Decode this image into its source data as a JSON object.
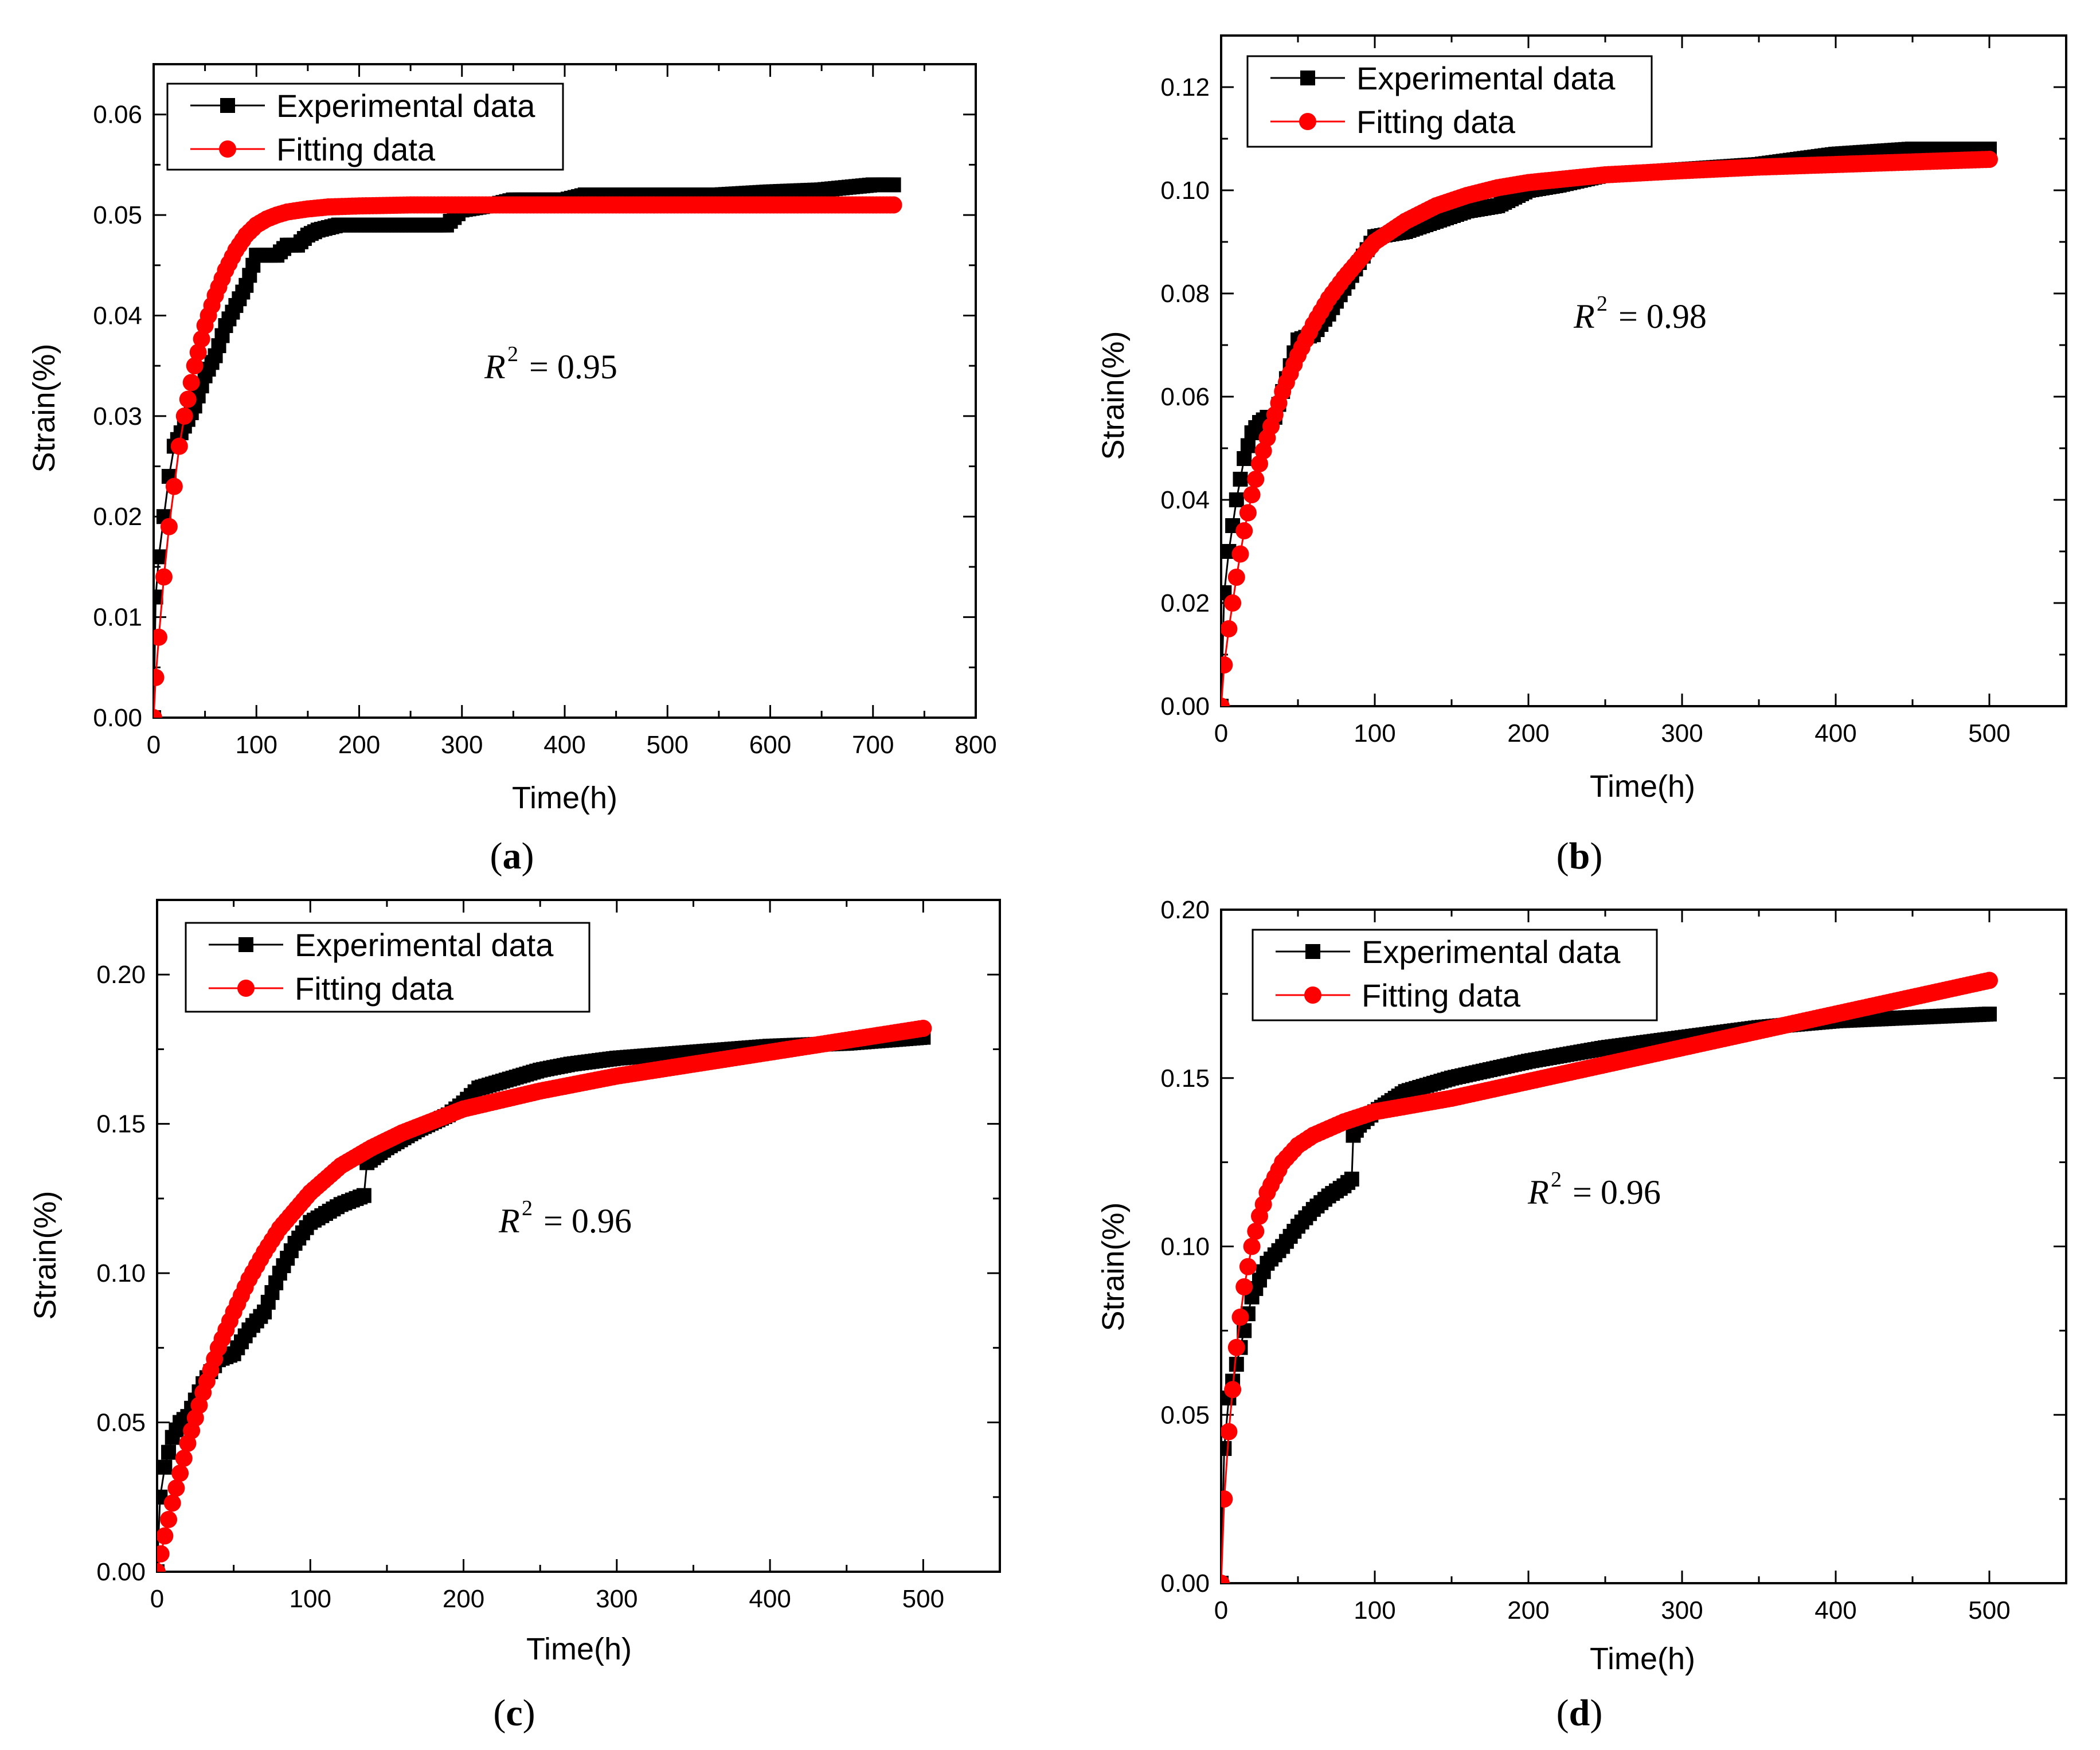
{
  "colors": {
    "experimental": "#000000",
    "fitting": "#ff0000",
    "axis": "#000000",
    "background": "#ffffff"
  },
  "chart_data": [
    {
      "id": "a",
      "type": "scatter",
      "caption_label": "a",
      "xlabel": "Time(h)",
      "ylabel": "Strain(%)",
      "xlim": [
        0,
        800
      ],
      "ylim": [
        0,
        0.065
      ],
      "xticks": [
        0,
        100,
        200,
        300,
        400,
        500,
        600,
        700,
        800
      ],
      "xtick_labels": [
        "0",
        "100",
        "200",
        "300",
        "400",
        "500",
        "600",
        "700",
        "800"
      ],
      "yticks": [
        0,
        0.01,
        0.02,
        0.03,
        0.04,
        0.05,
        0.06
      ],
      "ytick_labels": [
        "0.00",
        "0.01",
        "0.02",
        "0.03",
        "0.04",
        "0.05",
        "0.06"
      ],
      "legend": [
        "Experimental data",
        "Fitting data"
      ],
      "annotation": {
        "r2_symbol": "R",
        "r2_exp": "2",
        "r2_value": "= 0.95"
      },
      "series": [
        {
          "name": "Experimental data",
          "marker": "square",
          "x": [
            0,
            2,
            5,
            10,
            15,
            20,
            30,
            40,
            50,
            60,
            70,
            80,
            90,
            100,
            110,
            120,
            130,
            140,
            150,
            160,
            180,
            200,
            250,
            285,
            300,
            330,
            350,
            400,
            420,
            450,
            500,
            550,
            600,
            650,
            700,
            720
          ],
          "y": [
            0,
            0.012,
            0.016,
            0.02,
            0.024,
            0.027,
            0.029,
            0.031,
            0.034,
            0.036,
            0.039,
            0.041,
            0.043,
            0.046,
            0.046,
            0.046,
            0.047,
            0.047,
            0.048,
            0.0485,
            0.049,
            0.049,
            0.049,
            0.049,
            0.0505,
            0.051,
            0.0515,
            0.0515,
            0.052,
            0.052,
            0.052,
            0.052,
            0.0523,
            0.0525,
            0.053,
            0.053
          ]
        },
        {
          "name": "Fitting data",
          "marker": "circle",
          "x": [
            0,
            2,
            5,
            10,
            15,
            20,
            25,
            30,
            40,
            50,
            60,
            70,
            80,
            90,
            100,
            110,
            120,
            130,
            150,
            170,
            200,
            250,
            300,
            350,
            400,
            450,
            500,
            550,
            600,
            650,
            700,
            720
          ],
          "y": [
            0,
            0.004,
            0.008,
            0.014,
            0.019,
            0.023,
            0.027,
            0.03,
            0.035,
            0.039,
            0.042,
            0.0445,
            0.0465,
            0.048,
            0.049,
            0.0496,
            0.05,
            0.0503,
            0.0506,
            0.0508,
            0.0509,
            0.051,
            0.051,
            0.051,
            0.051,
            0.051,
            0.051,
            0.051,
            0.051,
            0.051,
            0.051,
            0.051
          ]
        }
      ]
    },
    {
      "id": "b",
      "type": "scatter",
      "caption_label": "b",
      "xlabel": "Time(h)",
      "ylabel": "Strain(%)",
      "xlim": [
        0,
        550
      ],
      "ylim": [
        0,
        0.13
      ],
      "xticks": [
        0,
        100,
        200,
        300,
        400,
        500
      ],
      "xtick_labels": [
        "0",
        "100",
        "200",
        "300",
        "400",
        "500"
      ],
      "yticks": [
        0,
        0.02,
        0.04,
        0.06,
        0.08,
        0.1,
        0.12
      ],
      "ytick_labels": [
        "0.00",
        "0.02",
        "0.04",
        "0.06",
        "0.08",
        "0.10",
        "0.12"
      ],
      "legend": [
        "Experimental data",
        "Fitting data"
      ],
      "annotation": {
        "r2_symbol": "R",
        "r2_exp": "2",
        "r2_value": "= 0.98"
      },
      "series": [
        {
          "name": "Experimental data",
          "marker": "square",
          "x": [
            0,
            2,
            5,
            10,
            15,
            20,
            25,
            30,
            35,
            40,
            45,
            50,
            60,
            70,
            80,
            90,
            100,
            120,
            140,
            160,
            180,
            200,
            220,
            250,
            300,
            350,
            400,
            450,
            500
          ],
          "y": [
            0,
            0.022,
            0.03,
            0.04,
            0.048,
            0.053,
            0.055,
            0.056,
            0.056,
            0.061,
            0.066,
            0.071,
            0.072,
            0.076,
            0.081,
            0.086,
            0.091,
            0.092,
            0.094,
            0.096,
            0.097,
            0.1,
            0.101,
            0.103,
            0.104,
            0.105,
            0.107,
            0.108,
            0.108
          ]
        },
        {
          "name": "Fitting data",
          "marker": "circle",
          "x": [
            0,
            2,
            5,
            10,
            15,
            20,
            25,
            30,
            40,
            50,
            60,
            70,
            80,
            100,
            120,
            140,
            160,
            180,
            200,
            250,
            300,
            350,
            400,
            450,
            500
          ],
          "y": [
            0,
            0.008,
            0.015,
            0.025,
            0.034,
            0.041,
            0.047,
            0.052,
            0.061,
            0.068,
            0.074,
            0.079,
            0.083,
            0.09,
            0.094,
            0.097,
            0.099,
            0.1005,
            0.1015,
            0.103,
            0.1038,
            0.1045,
            0.105,
            0.1055,
            0.106
          ]
        }
      ]
    },
    {
      "id": "c",
      "type": "scatter",
      "caption_label": "c",
      "xlabel": "Time(h)",
      "ylabel": "Strain(%)",
      "xlim": [
        0,
        550
      ],
      "ylim": [
        0,
        0.225
      ],
      "xticks": [
        0,
        100,
        200,
        300,
        400,
        500
      ],
      "xtick_labels": [
        "0",
        "100",
        "200",
        "300",
        "400",
        "500"
      ],
      "yticks": [
        0,
        0.05,
        0.1,
        0.15,
        0.2
      ],
      "ytick_labels": [
        "0.00",
        "0.05",
        "0.10",
        "0.15",
        "0.20"
      ],
      "legend": [
        "Experimental data",
        "Fitting data"
      ],
      "annotation": {
        "r2_symbol": "R",
        "r2_exp": "2",
        "r2_value": "= 0.96"
      },
      "series": [
        {
          "name": "Experimental data",
          "marker": "square",
          "x": [
            0,
            2,
            5,
            10,
            15,
            20,
            30,
            40,
            50,
            60,
            70,
            80,
            90,
            100,
            110,
            120,
            130,
            135,
            137,
            150,
            170,
            190,
            200,
            210,
            230,
            250,
            270,
            300,
            350,
            400,
            450,
            500
          ],
          "y": [
            0,
            0.025,
            0.035,
            0.045,
            0.05,
            0.052,
            0.063,
            0.071,
            0.073,
            0.081,
            0.087,
            0.1,
            0.11,
            0.117,
            0.12,
            0.123,
            0.125,
            0.126,
            0.137,
            0.142,
            0.148,
            0.153,
            0.157,
            0.162,
            0.165,
            0.168,
            0.17,
            0.172,
            0.174,
            0.176,
            0.177,
            0.179
          ]
        },
        {
          "name": "Fitting data",
          "marker": "circle",
          "x": [
            0,
            5,
            10,
            20,
            30,
            40,
            50,
            60,
            70,
            80,
            100,
            120,
            140,
            160,
            180,
            200,
            250,
            300,
            350,
            400,
            450,
            500
          ],
          "y": [
            0,
            0.012,
            0.023,
            0.043,
            0.06,
            0.075,
            0.087,
            0.098,
            0.107,
            0.115,
            0.127,
            0.136,
            0.142,
            0.147,
            0.151,
            0.155,
            0.161,
            0.166,
            0.17,
            0.174,
            0.178,
            0.182
          ]
        }
      ]
    },
    {
      "id": "d",
      "type": "scatter",
      "caption_label": "d",
      "xlabel": "Time(h)",
      "ylabel": "Strain(%)",
      "xlim": [
        0,
        550
      ],
      "ylim": [
        0,
        0.2
      ],
      "xticks": [
        0,
        100,
        200,
        300,
        400,
        500
      ],
      "xtick_labels": [
        "0",
        "100",
        "200",
        "300",
        "400",
        "500"
      ],
      "yticks": [
        0,
        0.05,
        0.1,
        0.15,
        0.2
      ],
      "ytick_labels": [
        "0.00",
        "0.05",
        "0.10",
        "0.15",
        "0.20"
      ],
      "legend": [
        "Experimental data",
        "Fitting data"
      ],
      "annotation": {
        "r2_symbol": "R",
        "r2_exp": "2",
        "r2_value": "= 0.96"
      },
      "series": [
        {
          "name": "Experimental data",
          "marker": "square",
          "x": [
            0,
            2,
            5,
            10,
            15,
            20,
            30,
            40,
            50,
            60,
            70,
            80,
            85,
            86,
            90,
            100,
            120,
            150,
            200,
            250,
            300,
            350,
            400,
            450,
            500
          ],
          "y": [
            0,
            0.04,
            0.055,
            0.065,
            0.075,
            0.085,
            0.095,
            0.1,
            0.106,
            0.111,
            0.115,
            0.118,
            0.12,
            0.133,
            0.136,
            0.14,
            0.146,
            0.15,
            0.155,
            0.159,
            0.162,
            0.165,
            0.167,
            0.168,
            0.169
          ]
        },
        {
          "name": "Fitting data",
          "marker": "circle",
          "x": [
            0,
            2,
            5,
            10,
            15,
            20,
            25,
            30,
            40,
            50,
            60,
            70,
            80,
            90,
            100,
            150,
            200,
            250,
            300,
            350,
            400,
            450,
            500
          ],
          "y": [
            0,
            0.025,
            0.045,
            0.07,
            0.088,
            0.1,
            0.109,
            0.116,
            0.125,
            0.13,
            0.133,
            0.135,
            0.137,
            0.1385,
            0.14,
            0.144,
            0.149,
            0.154,
            0.159,
            0.164,
            0.169,
            0.174,
            0.179
          ]
        }
      ]
    }
  ]
}
